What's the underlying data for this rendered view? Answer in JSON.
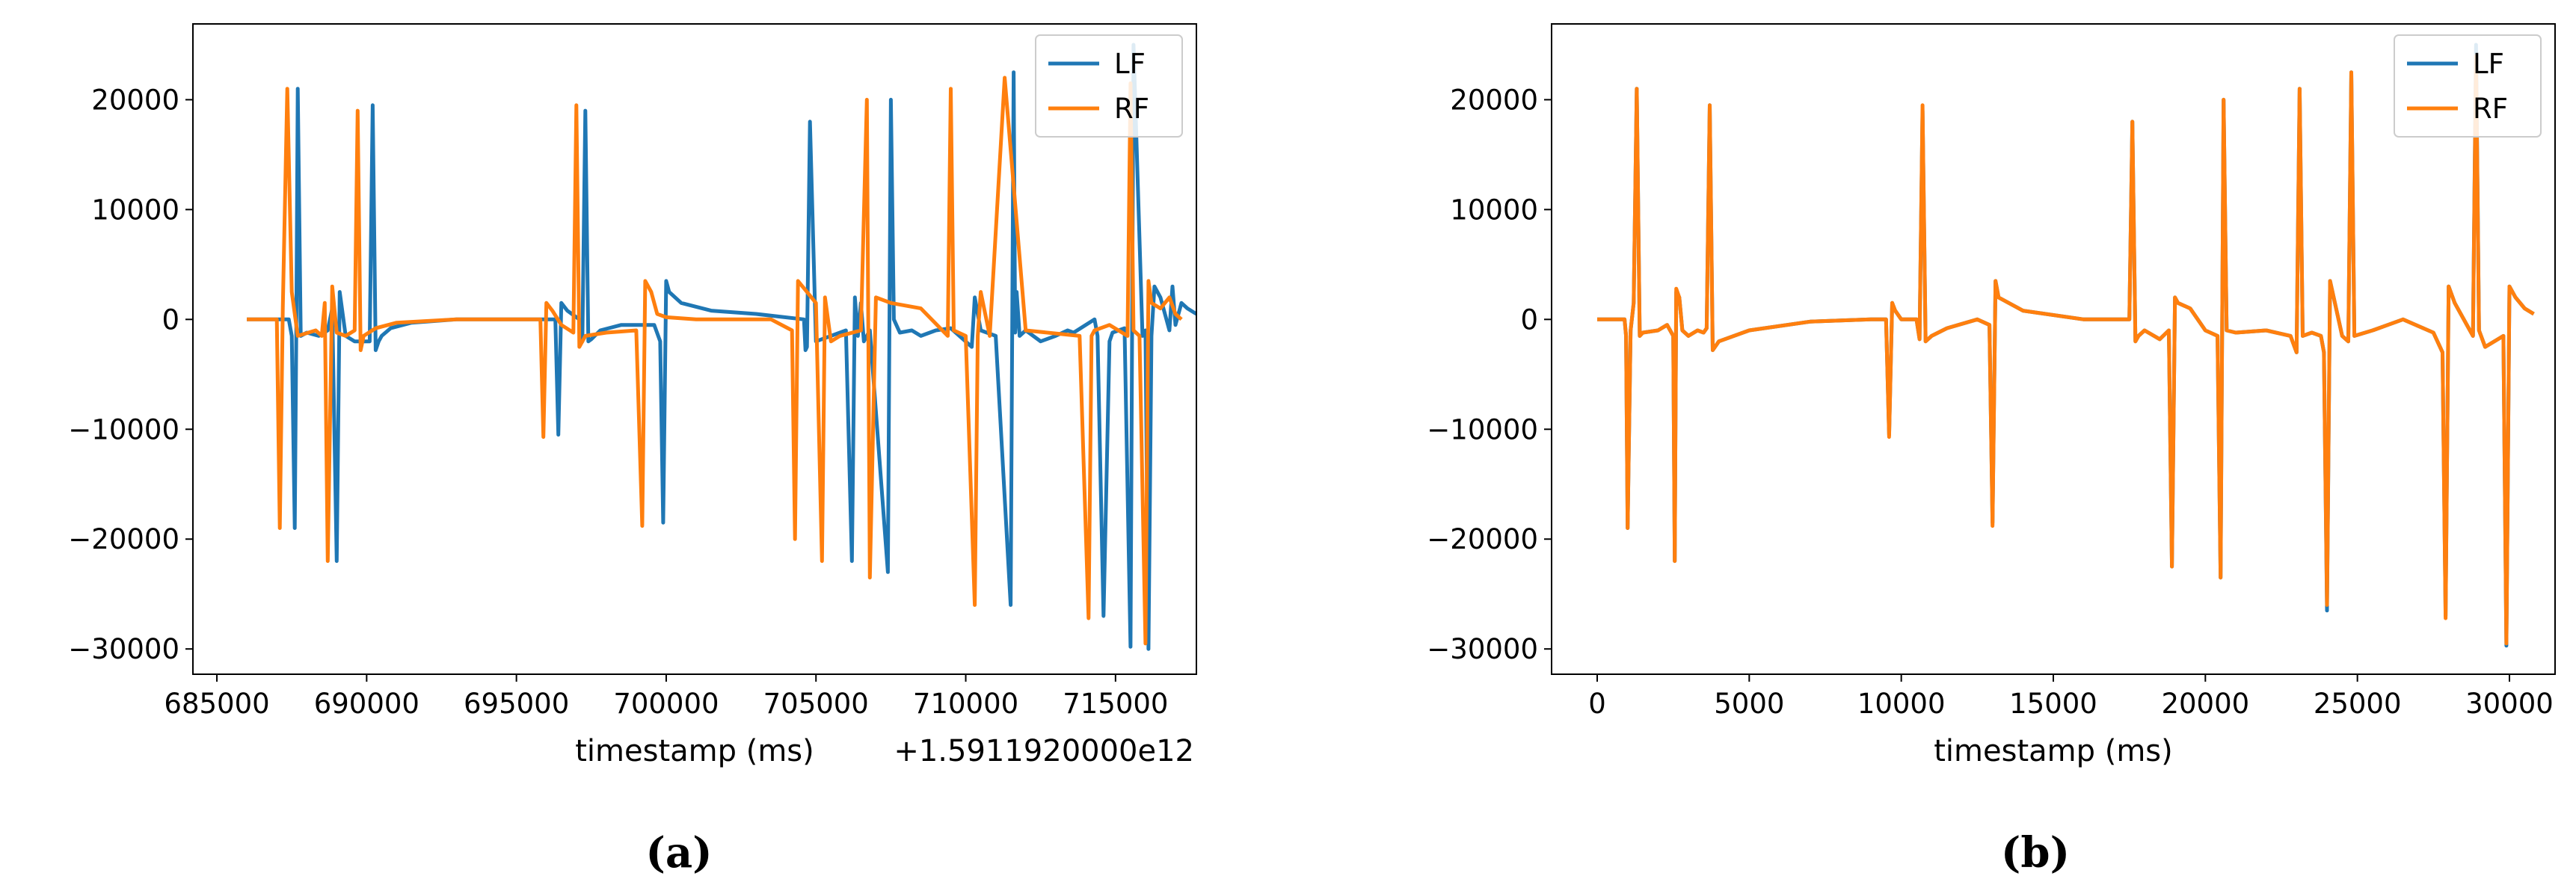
{
  "colors": {
    "LF": "#1f77b4",
    "RF": "#ff7f0e"
  },
  "captions": [
    "(a)",
    "(b)"
  ],
  "chart_data": [
    {
      "type": "line",
      "title": "",
      "xlabel": "timestamp (ms)",
      "ylabel": "",
      "offset_label": "+1.5911920000e12",
      "xlim": [
        684200,
        717700
      ],
      "ylim": [
        -32300,
        26900
      ],
      "xticks": [
        685000,
        690000,
        695000,
        700000,
        705000,
        710000,
        715000
      ],
      "xtick_labels": [
        "685000",
        "690000",
        "695000",
        "700000",
        "705000",
        "710000",
        "715000"
      ],
      "yticks": [
        20000,
        10000,
        0,
        -10000,
        -20000,
        -30000
      ],
      "ytick_labels": [
        "20000",
        "10000",
        "0",
        "−10000",
        "−20000",
        "−30000"
      ],
      "legend": {
        "position": "top-right",
        "entries": [
          "LF",
          "RF"
        ]
      },
      "grid": false,
      "series": [
        {
          "name": "LF",
          "x": [
            686000,
            686800,
            687400,
            687500,
            687600,
            687650,
            687700,
            687800,
            688000,
            688400,
            688700,
            688850,
            689000,
            689100,
            689300,
            689600,
            690100,
            690200,
            690300,
            690400,
            690500,
            690800,
            691500,
            693000,
            695000,
            696000,
            696300,
            696400,
            696500,
            696700,
            697100,
            697200,
            697300,
            697400,
            697500,
            697800,
            698500,
            699600,
            699800,
            699900,
            700000,
            700100,
            700500,
            701500,
            703000,
            704600,
            704650,
            704700,
            704800,
            705000,
            705500,
            706000,
            706200,
            706300,
            706400,
            706500,
            706600,
            706800,
            707400,
            707500,
            707600,
            707800,
            708200,
            708500,
            709000,
            709500,
            710200,
            710300,
            710500,
            711000,
            711500,
            711600,
            711650,
            711700,
            711800,
            712000,
            712500,
            713000,
            713400,
            713600,
            714300,
            714400,
            714600,
            714800,
            714900,
            715300,
            715500,
            715600,
            715900,
            716000,
            716100,
            716200,
            716300,
            716500,
            716800,
            716900,
            717000,
            717200,
            717400,
            717700
          ],
          "y": [
            0,
            0,
            0,
            -1500,
            -19000,
            -1500,
            21000,
            -1500,
            -1200,
            -1500,
            -1000,
            1000,
            -22000,
            2500,
            -1500,
            -2000,
            -2000,
            19500,
            -2800,
            -2000,
            -1500,
            -800,
            -300,
            0,
            0,
            0,
            0,
            -10500,
            1500,
            800,
            0,
            -2000,
            19000,
            -2000,
            -1800,
            -1000,
            -500,
            -500,
            -2000,
            -18500,
            3500,
            2500,
            1500,
            800,
            500,
            0,
            -2800,
            -2500,
            18000,
            -2000,
            -1500,
            -1000,
            -22000,
            2000,
            -1500,
            1500,
            -2000,
            -1000,
            -23000,
            20000,
            0,
            -1200,
            -1000,
            -1500,
            -1000,
            -800,
            -2500,
            2000,
            -1000,
            -1500,
            -26000,
            22500,
            -1200,
            2500,
            -1500,
            -1000,
            -2000,
            -1500,
            -1000,
            -1200,
            0,
            -1500,
            -27000,
            -2000,
            -1200,
            -800,
            -29800,
            25000,
            -1500,
            -1000,
            -30000,
            -1500,
            3000,
            2000,
            -1000,
            3000,
            -500,
            1500,
            1000,
            500
          ]
        },
        {
          "name": "RF",
          "x": [
            686000,
            686800,
            687000,
            687100,
            687200,
            687350,
            687500,
            687700,
            688300,
            688500,
            688600,
            688700,
            688850,
            689000,
            689300,
            689600,
            689700,
            689800,
            689900,
            690300,
            691000,
            693000,
            695800,
            695900,
            696000,
            696200,
            696500,
            696900,
            697000,
            697100,
            697300,
            698000,
            699000,
            699200,
            699300,
            699500,
            699700,
            700000,
            701000,
            703500,
            704200,
            704300,
            704400,
            704700,
            705000,
            705200,
            705300,
            705500,
            705800,
            706500,
            706700,
            706800,
            707000,
            707500,
            708500,
            709400,
            709500,
            709600,
            710000,
            710300,
            710400,
            710500,
            710800,
            711300,
            712000,
            713800,
            714100,
            714200,
            714300,
            714800,
            715400,
            715500,
            715600,
            715800,
            716000,
            716100,
            716200,
            716500,
            716800,
            717000,
            717200
          ],
          "y": [
            0,
            0,
            0,
            -19000,
            1000,
            21000,
            2500,
            -1500,
            -1000,
            -1500,
            1500,
            -22000,
            3000,
            -1200,
            -1500,
            -1000,
            19000,
            -2800,
            -1500,
            -800,
            -300,
            0,
            0,
            -10700,
            1500,
            800,
            -500,
            -1200,
            19500,
            -2500,
            -1500,
            -1200,
            -1000,
            -18800,
            3500,
            2500,
            500,
            200,
            0,
            0,
            -1000,
            -20000,
            3500,
            2500,
            1500,
            -22000,
            2000,
            -2000,
            -1500,
            -1000,
            20000,
            -23500,
            2000,
            1500,
            1000,
            -1500,
            21000,
            -1000,
            -1500,
            -26000,
            -1500,
            2500,
            -1500,
            22000,
            -1000,
            -1500,
            -27200,
            -1500,
            -1000,
            -500,
            -1500,
            21500,
            -1000,
            -1500,
            -29500,
            3500,
            1500,
            1000,
            2000,
            500,
            0
          ]
        }
      ]
    },
    {
      "type": "line",
      "title": "",
      "xlabel": "timestamp (ms)",
      "ylabel": "",
      "xlim": [
        -1500,
        31500
      ],
      "ylim": [
        -32300,
        26900
      ],
      "xticks": [
        0,
        5000,
        10000,
        15000,
        20000,
        25000,
        30000
      ],
      "xtick_labels": [
        "0",
        "5000",
        "10000",
        "15000",
        "20000",
        "25000",
        "30000"
      ],
      "yticks": [
        20000,
        10000,
        0,
        -10000,
        -20000,
        -30000
      ],
      "ytick_labels": [
        "20000",
        "10000",
        "0",
        "−10000",
        "−20000",
        "−30000"
      ],
      "legend": {
        "position": "top-right",
        "entries": [
          "LF",
          "RF"
        ]
      },
      "grid": false,
      "series": [
        {
          "name": "LF",
          "x": [
            0,
            700,
            900,
            950,
            1000,
            1100,
            1200,
            1300,
            1400,
            1500,
            2000,
            2300,
            2500,
            2550,
            2600,
            2700,
            2800,
            3000,
            3300,
            3500,
            3600,
            3700,
            3800,
            4000,
            5000,
            7000,
            9000,
            9500,
            9600,
            9700,
            9800,
            10000,
            10500,
            10600,
            10700,
            10800,
            11000,
            11500,
            12500,
            12900,
            13000,
            13100,
            13200,
            14000,
            16000,
            17500,
            17600,
            17700,
            17800,
            18000,
            18500,
            18800,
            18900,
            19000,
            19100,
            19500,
            20000,
            20400,
            20500,
            20600,
            20700,
            21000,
            22000,
            22800,
            23000,
            23100,
            23200,
            23500,
            23800,
            23900,
            24000,
            24100,
            24500,
            24700,
            24800,
            24900,
            25500,
            26000,
            26500,
            27500,
            27800,
            27900,
            28000,
            28200,
            28800,
            28900,
            29000,
            29200,
            29800,
            29900,
            30000,
            30200,
            30500,
            30800
          ],
          "y": [
            0,
            0,
            0,
            -1500,
            -19000,
            -1000,
            1500,
            21000,
            -1500,
            -1200,
            -1000,
            -500,
            -1500,
            -22000,
            2500,
            2000,
            -1000,
            -1500,
            -1000,
            -1200,
            -800,
            19500,
            -2800,
            -2000,
            -1000,
            -200,
            0,
            0,
            -10500,
            1500,
            800,
            0,
            0,
            -1800,
            19000,
            -2000,
            -1500,
            -800,
            0,
            -500,
            -18500,
            3500,
            2000,
            800,
            0,
            0,
            18000,
            -2000,
            -1500,
            -1000,
            -1800,
            -1000,
            -22500,
            2000,
            1500,
            1000,
            -1000,
            -1500,
            -23500,
            20000,
            -1000,
            -1200,
            -1000,
            -1500,
            -3000,
            21000,
            -1500,
            -1200,
            -1500,
            -3000,
            -26500,
            3500,
            -1500,
            -2000,
            22500,
            -1500,
            -1000,
            -500,
            0,
            -1200,
            -3000,
            -27000,
            3000,
            1500,
            -1500,
            25000,
            -1000,
            -2500,
            -1500,
            -29700,
            3000,
            2000,
            1000,
            500
          ]
        },
        {
          "name": "RF",
          "x": [
            0,
            700,
            900,
            950,
            1000,
            1100,
            1200,
            1300,
            1400,
            1500,
            2000,
            2300,
            2500,
            2550,
            2600,
            2700,
            2800,
            3000,
            3300,
            3500,
            3600,
            3700,
            3800,
            4000,
            5000,
            7000,
            9000,
            9500,
            9600,
            9700,
            9800,
            10000,
            10500,
            10600,
            10700,
            10800,
            11000,
            11500,
            12500,
            12900,
            13000,
            13100,
            13200,
            14000,
            16000,
            17500,
            17600,
            17700,
            17800,
            18000,
            18500,
            18800,
            18900,
            19000,
            19100,
            19500,
            20000,
            20400,
            20500,
            20600,
            20700,
            21000,
            22000,
            22800,
            23000,
            23100,
            23200,
            23500,
            23800,
            23900,
            24000,
            24100,
            24500,
            24700,
            24800,
            24900,
            25500,
            26000,
            26500,
            27500,
            27800,
            27900,
            28000,
            28200,
            28800,
            28900,
            29000,
            29200,
            29800,
            29900,
            30000,
            30200,
            30500,
            30800
          ],
          "y": [
            0,
            0,
            0,
            -1500,
            -19000,
            -1000,
            1500,
            21000,
            -1500,
            -1200,
            -1000,
            -500,
            -1500,
            -22000,
            2800,
            2000,
            -1000,
            -1500,
            -1000,
            -1200,
            -800,
            19500,
            -2800,
            -2000,
            -1000,
            -200,
            0,
            0,
            -10700,
            1500,
            800,
            0,
            0,
            -1800,
            19500,
            -2000,
            -1500,
            -800,
            0,
            -500,
            -18800,
            3500,
            2000,
            800,
            0,
            0,
            18000,
            -2000,
            -1500,
            -1000,
            -1800,
            -1000,
            -22500,
            2000,
            1500,
            1000,
            -1000,
            -1500,
            -23500,
            20000,
            -1000,
            -1200,
            -1000,
            -1500,
            -3000,
            21000,
            -1500,
            -1200,
            -1500,
            -3000,
            -26000,
            3500,
            -1500,
            -2000,
            22500,
            -1500,
            -1000,
            -500,
            0,
            -1200,
            -3000,
            -27200,
            3000,
            1500,
            -1500,
            24000,
            -1000,
            -2500,
            -1500,
            -29500,
            3000,
            2000,
            1000,
            500
          ]
        }
      ]
    }
  ]
}
